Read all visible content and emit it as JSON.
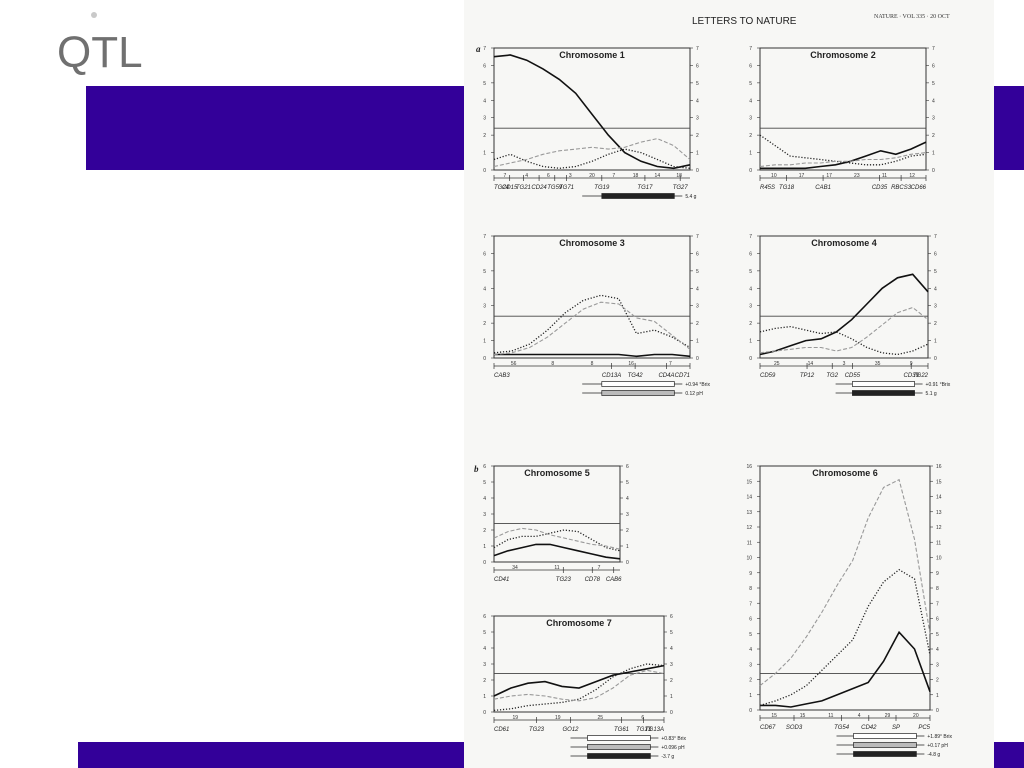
{
  "slide": {
    "title": "QTL"
  },
  "colors": {
    "band": "#330099",
    "title": "#707070"
  },
  "scan": {
    "header": "LETTERS TO NATURE",
    "journal": "NATURE · VOL 335 · 20 OCT",
    "panel_a": "a",
    "panel_b": "b"
  },
  "chart_data": [
    {
      "type": "line",
      "title": "Chromosome 1",
      "ylim": [
        0,
        7
      ],
      "threshold": 2.4,
      "markers": [
        "TG24",
        "CD15",
        "TG21",
        "CD24",
        "TG59",
        "TG71",
        "TG19",
        "TG17",
        "TG27"
      ],
      "marker_pos": [
        0,
        0.08,
        0.15,
        0.23,
        0.31,
        0.37,
        0.55,
        0.77,
        0.95
      ],
      "distances": [
        "7",
        "4",
        "6",
        "3",
        "20",
        "7",
        "18",
        "14",
        "18"
      ],
      "series": [
        {
          "style": "solid",
          "values": [
            6.5,
            6.6,
            6.3,
            5.8,
            5.2,
            4.4,
            3.2,
            2.0,
            1.0,
            0.5,
            0.2,
            0.1,
            0.3
          ]
        },
        {
          "style": "dotted",
          "values": [
            0.6,
            0.9,
            0.5,
            0.2,
            0.1,
            0.2,
            0.5,
            0.9,
            1.2,
            1.0,
            0.6,
            0.2,
            0.1
          ]
        },
        {
          "style": "dashed",
          "values": [
            0.2,
            0.4,
            0.6,
            0.9,
            1.1,
            1.2,
            1.3,
            1.2,
            1.3,
            1.6,
            1.8,
            1.4,
            0.6
          ]
        }
      ],
      "intervals": [
        {
          "fill": "solid",
          "label": "5.4 g"
        }
      ]
    },
    {
      "type": "line",
      "title": "Chromosome 2",
      "ylim": [
        0,
        7
      ],
      "threshold": 2.4,
      "markers": [
        "R45S",
        "TG18",
        "CAB1",
        "CD35",
        "RBCS3",
        "CD66"
      ],
      "marker_pos": [
        0,
        0.16,
        0.38,
        0.72,
        0.85,
        1.0
      ],
      "distances": [
        "10",
        "17",
        "17",
        "23",
        "11",
        "12"
      ],
      "series": [
        {
          "style": "solid",
          "values": [
            0.1,
            0.1,
            0.1,
            0.1,
            0.2,
            0.3,
            0.5,
            0.8,
            1.1,
            0.9,
            1.2,
            1.6
          ]
        },
        {
          "style": "dotted",
          "values": [
            2.0,
            1.4,
            0.8,
            0.7,
            0.6,
            0.5,
            0.4,
            0.3,
            0.3,
            0.5,
            0.8,
            0.9
          ]
        },
        {
          "style": "dashed",
          "values": [
            0.2,
            0.3,
            0.3,
            0.4,
            0.4,
            0.5,
            0.5,
            0.6,
            0.6,
            0.7,
            0.9,
            1.0
          ]
        }
      ],
      "intervals": []
    },
    {
      "type": "line",
      "title": "Chromosome 3",
      "ylim": [
        0,
        7
      ],
      "threshold": 2.4,
      "markers": [
        "CAB3",
        "CD13A",
        "TG42",
        "CD4A",
        "CD71"
      ],
      "marker_pos": [
        0,
        0.6,
        0.72,
        0.88,
        1.0
      ],
      "distances": [
        "56",
        "8",
        "8",
        "16",
        "7"
      ],
      "series": [
        {
          "style": "solid",
          "values": [
            0.2,
            0.2,
            0.2,
            0.2,
            0.2,
            0.2,
            0.2,
            0.2,
            0.1,
            0.2,
            0.2,
            0.1
          ]
        },
        {
          "style": "dotted",
          "values": [
            0.3,
            0.4,
            0.8,
            1.6,
            2.6,
            3.3,
            3.6,
            3.4,
            1.4,
            1.6,
            1.2,
            0.6
          ]
        },
        {
          "style": "dashed",
          "values": [
            0.2,
            0.3,
            0.6,
            1.2,
            2.0,
            2.8,
            3.2,
            3.1,
            2.3,
            2.1,
            1.3,
            0.5
          ]
        }
      ],
      "intervals": [
        {
          "fill": "open",
          "label": "+0.94 °Brix"
        },
        {
          "fill": "hatched",
          "label": "0.12 pH"
        }
      ]
    },
    {
      "type": "line",
      "title": "Chromosome 4",
      "ylim": [
        0,
        7
      ],
      "threshold": 2.4,
      "markers": [
        "CD59",
        "TP12",
        "TG2",
        "CD55",
        "CD39",
        "TG22"
      ],
      "marker_pos": [
        0,
        0.28,
        0.43,
        0.55,
        0.9,
        1.0
      ],
      "distances": [
        "25",
        "14",
        "3",
        "35",
        "9"
      ],
      "series": [
        {
          "style": "solid",
          "values": [
            0.2,
            0.4,
            0.7,
            1.0,
            1.1,
            1.5,
            2.2,
            3.1,
            4.0,
            4.6,
            4.8,
            3.8
          ]
        },
        {
          "style": "dotted",
          "values": [
            1.5,
            1.7,
            1.8,
            1.6,
            1.4,
            1.5,
            1.1,
            0.6,
            0.3,
            0.2,
            0.4,
            0.8
          ]
        },
        {
          "style": "dashed",
          "values": [
            0.3,
            0.4,
            0.5,
            0.6,
            0.6,
            0.4,
            0.6,
            1.2,
            1.9,
            2.6,
            2.9,
            2.2
          ]
        }
      ],
      "intervals": [
        {
          "fill": "open",
          "label": "+0.91 °Brix"
        },
        {
          "fill": "solid",
          "label": "5.1 g"
        }
      ]
    },
    {
      "type": "line",
      "title": "Chromosome 5",
      "ylim": [
        0,
        6
      ],
      "threshold": 2.4,
      "markers": [
        "CD41",
        "TG23",
        "CD78",
        "CAB6"
      ],
      "marker_pos": [
        0,
        0.55,
        0.78,
        0.95
      ],
      "distances": [
        "34",
        "11",
        "7"
      ],
      "series": [
        {
          "style": "solid",
          "values": [
            0.4,
            0.7,
            0.9,
            1.1,
            1.1,
            0.9,
            0.7,
            0.5,
            0.3,
            0.2
          ]
        },
        {
          "style": "dotted",
          "values": [
            0.9,
            1.4,
            1.6,
            1.6,
            1.8,
            2.0,
            1.9,
            1.4,
            0.9,
            0.7
          ]
        },
        {
          "style": "dashed",
          "values": [
            1.5,
            1.9,
            2.1,
            2.0,
            1.7,
            1.5,
            1.3,
            1.1,
            1.0,
            0.8
          ]
        }
      ],
      "intervals": []
    },
    {
      "type": "line",
      "title": "Chromosome 6",
      "ylim": [
        0,
        16
      ],
      "threshold": 2.4,
      "markers": [
        "CD67",
        "SOD3",
        "TG54",
        "CD42",
        "SP",
        "PC5"
      ],
      "marker_pos": [
        0,
        0.2,
        0.48,
        0.64,
        0.8,
        1.0
      ],
      "distances": [
        "15",
        "15",
        "11",
        "4",
        "29",
        "20"
      ],
      "series": [
        {
          "style": "solid",
          "values": [
            0.3,
            0.3,
            0.2,
            0.4,
            0.6,
            1.0,
            1.4,
            1.8,
            3.2,
            5.1,
            4.0,
            1.2
          ]
        },
        {
          "style": "dotted",
          "values": [
            0.3,
            0.6,
            1.0,
            1.6,
            2.6,
            3.6,
            4.6,
            6.8,
            8.4,
            9.2,
            8.6,
            3.6
          ]
        },
        {
          "style": "dashed",
          "values": [
            1.6,
            2.4,
            3.4,
            4.8,
            6.4,
            8.2,
            9.8,
            12.6,
            14.6,
            15.1,
            11.2,
            5.0
          ]
        }
      ],
      "intervals": [
        {
          "fill": "open",
          "label": "+1.89° Brix"
        },
        {
          "fill": "hatched",
          "label": "+0.17 pH"
        },
        {
          "fill": "solid",
          "label": "-4.8 g"
        }
      ]
    },
    {
      "type": "line",
      "title": "Chromosome 7",
      "ylim": [
        0,
        6
      ],
      "threshold": 2.4,
      "markers": [
        "CD61",
        "TG23",
        "GO12",
        "TG61",
        "TG13",
        "TG13A"
      ],
      "marker_pos": [
        0,
        0.25,
        0.45,
        0.75,
        0.88,
        1.0
      ],
      "distances": [
        "19",
        "19",
        "25",
        "6"
      ],
      "series": [
        {
          "style": "solid",
          "values": [
            1.0,
            1.5,
            1.8,
            1.9,
            1.6,
            1.5,
            1.9,
            2.3,
            2.5,
            2.7,
            2.9
          ]
        },
        {
          "style": "dotted",
          "values": [
            0.1,
            0.2,
            0.4,
            0.5,
            0.6,
            0.8,
            1.4,
            2.2,
            2.7,
            3.0,
            2.9
          ]
        },
        {
          "style": "dashed",
          "values": [
            0.8,
            1.0,
            1.1,
            1.0,
            0.8,
            0.7,
            0.9,
            1.5,
            2.3,
            2.6,
            2.4
          ]
        }
      ],
      "intervals": [
        {
          "fill": "open",
          "label": "+0.83° Brix"
        },
        {
          "fill": "hatched",
          "label": "+0.096 pH"
        },
        {
          "fill": "solid",
          "label": "-3.7 g"
        }
      ]
    }
  ]
}
